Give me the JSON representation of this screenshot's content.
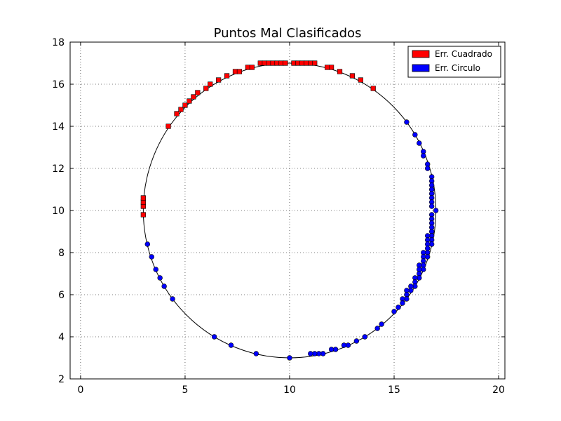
{
  "chart_data": {
    "type": "scatter",
    "title": "Puntos Mal Clasificados",
    "xlabel": "",
    "ylabel": "",
    "xlim": [
      -0.5,
      20.3
    ],
    "ylim": [
      2,
      18
    ],
    "xticks": [
      0,
      5,
      10,
      15,
      20
    ],
    "yticks": [
      2,
      4,
      6,
      8,
      10,
      12,
      14,
      16,
      18
    ],
    "grid": true,
    "legend": "top-right",
    "boundary_circle": {
      "cx": 10,
      "cy": 10,
      "r": 7
    },
    "series": [
      {
        "name": "Err. Cuadrado",
        "color": "#ff0000",
        "marker": "square",
        "points": [
          [
            3.0,
            9.8
          ],
          [
            3.0,
            10.2
          ],
          [
            3.0,
            10.4
          ],
          [
            3.0,
            10.6
          ],
          [
            4.2,
            14.0
          ],
          [
            4.6,
            14.6
          ],
          [
            4.8,
            14.8
          ],
          [
            5.0,
            15.0
          ],
          [
            5.2,
            15.2
          ],
          [
            5.4,
            15.4
          ],
          [
            5.6,
            15.6
          ],
          [
            6.0,
            15.8
          ],
          [
            6.2,
            16.0
          ],
          [
            6.6,
            16.2
          ],
          [
            7.0,
            16.4
          ],
          [
            7.4,
            16.6
          ],
          [
            7.6,
            16.6
          ],
          [
            8.0,
            16.8
          ],
          [
            8.2,
            16.8
          ],
          [
            8.6,
            17.0
          ],
          [
            8.8,
            17.0
          ],
          [
            9.0,
            17.0
          ],
          [
            9.2,
            17.0
          ],
          [
            9.4,
            17.0
          ],
          [
            9.6,
            17.0
          ],
          [
            9.8,
            17.0
          ],
          [
            10.2,
            17.0
          ],
          [
            10.4,
            17.0
          ],
          [
            10.6,
            17.0
          ],
          [
            10.8,
            17.0
          ],
          [
            11.0,
            17.0
          ],
          [
            11.2,
            17.0
          ],
          [
            11.8,
            16.8
          ],
          [
            12.0,
            16.8
          ],
          [
            12.4,
            16.6
          ],
          [
            13.0,
            16.4
          ],
          [
            13.4,
            16.2
          ],
          [
            14.0,
            15.8
          ]
        ]
      },
      {
        "name": "Err. Circulo",
        "color": "#0000ff",
        "marker": "circle",
        "points": [
          [
            15.6,
            14.2
          ],
          [
            16.0,
            13.6
          ],
          [
            16.2,
            13.2
          ],
          [
            16.4,
            12.8
          ],
          [
            16.4,
            12.6
          ],
          [
            16.6,
            12.2
          ],
          [
            16.6,
            12.0
          ],
          [
            16.8,
            11.6
          ],
          [
            16.8,
            11.4
          ],
          [
            16.8,
            11.2
          ],
          [
            16.8,
            11.0
          ],
          [
            16.8,
            10.8
          ],
          [
            16.8,
            10.6
          ],
          [
            16.8,
            10.4
          ],
          [
            16.8,
            10.2
          ],
          [
            17.0,
            10.0
          ],
          [
            16.8,
            9.8
          ],
          [
            16.8,
            9.6
          ],
          [
            16.8,
            9.4
          ],
          [
            16.8,
            9.2
          ],
          [
            16.8,
            9.0
          ],
          [
            16.8,
            8.8
          ],
          [
            16.8,
            8.6
          ],
          [
            16.8,
            8.4
          ],
          [
            16.6,
            8.8
          ],
          [
            16.6,
            8.6
          ],
          [
            16.6,
            8.4
          ],
          [
            16.6,
            8.2
          ],
          [
            16.6,
            8.0
          ],
          [
            16.6,
            7.8
          ],
          [
            16.4,
            8.0
          ],
          [
            16.4,
            7.8
          ],
          [
            16.4,
            7.6
          ],
          [
            16.4,
            7.4
          ],
          [
            16.4,
            7.2
          ],
          [
            16.2,
            7.4
          ],
          [
            16.2,
            7.2
          ],
          [
            16.2,
            7.0
          ],
          [
            16.2,
            6.8
          ],
          [
            16.0,
            6.8
          ],
          [
            16.0,
            6.6
          ],
          [
            16.0,
            6.4
          ],
          [
            15.8,
            6.4
          ],
          [
            15.8,
            6.2
          ],
          [
            15.6,
            6.2
          ],
          [
            15.6,
            6.0
          ],
          [
            15.6,
            5.8
          ],
          [
            15.4,
            5.8
          ],
          [
            15.4,
            5.6
          ],
          [
            15.2,
            5.4
          ],
          [
            15.0,
            5.2
          ],
          [
            14.4,
            4.6
          ],
          [
            14.2,
            4.4
          ],
          [
            13.6,
            4.0
          ],
          [
            13.2,
            3.8
          ],
          [
            12.8,
            3.6
          ],
          [
            12.6,
            3.6
          ],
          [
            12.2,
            3.4
          ],
          [
            12.0,
            3.4
          ],
          [
            11.6,
            3.2
          ],
          [
            11.4,
            3.2
          ],
          [
            11.2,
            3.2
          ],
          [
            11.0,
            3.2
          ],
          [
            10.0,
            3.0
          ],
          [
            8.4,
            3.2
          ],
          [
            7.2,
            3.6
          ],
          [
            6.4,
            4.0
          ],
          [
            4.4,
            5.8
          ],
          [
            4.0,
            6.4
          ],
          [
            3.8,
            6.8
          ],
          [
            3.6,
            7.2
          ],
          [
            3.4,
            7.8
          ],
          [
            3.2,
            8.4
          ]
        ]
      }
    ]
  }
}
